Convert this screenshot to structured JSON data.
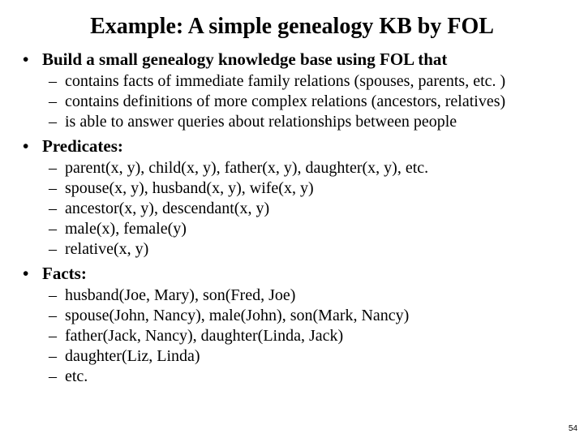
{
  "title": "Example: A simple genealogy KB by FOL",
  "page_number": "54",
  "colors": {
    "background": "#ffffff",
    "text": "#000000"
  },
  "typography": {
    "family": "Times New Roman",
    "title_fontsize_pt": 21,
    "l1_fontsize_pt": 16,
    "l2_fontsize_pt": 15,
    "title_weight": "bold",
    "l1_weight": "bold",
    "l2_weight": "normal"
  },
  "bullets": {
    "l1_glyph": "•",
    "l2_glyph": "–"
  },
  "items": [
    {
      "label": "Build a small genealogy knowledge base using FOL that",
      "sub": [
        "contains facts of immediate family relations (spouses, parents, etc. )",
        "contains definitions of more complex relations (ancestors, relatives)",
        "is able to answer queries about relationships between people"
      ]
    },
    {
      "label": "Predicates:",
      "sub": [
        "parent(x, y), child(x, y), father(x, y), daughter(x, y), etc.",
        "spouse(x, y), husband(x, y), wife(x, y)",
        "ancestor(x, y), descendant(x, y)",
        "male(x), female(y)",
        "relative(x, y)"
      ]
    },
    {
      "label": "Facts:",
      "sub": [
        "husband(Joe, Mary), son(Fred, Joe)",
        "spouse(John, Nancy), male(John), son(Mark, Nancy)",
        "father(Jack, Nancy), daughter(Linda, Jack)",
        "daughter(Liz, Linda)",
        "etc."
      ]
    }
  ]
}
